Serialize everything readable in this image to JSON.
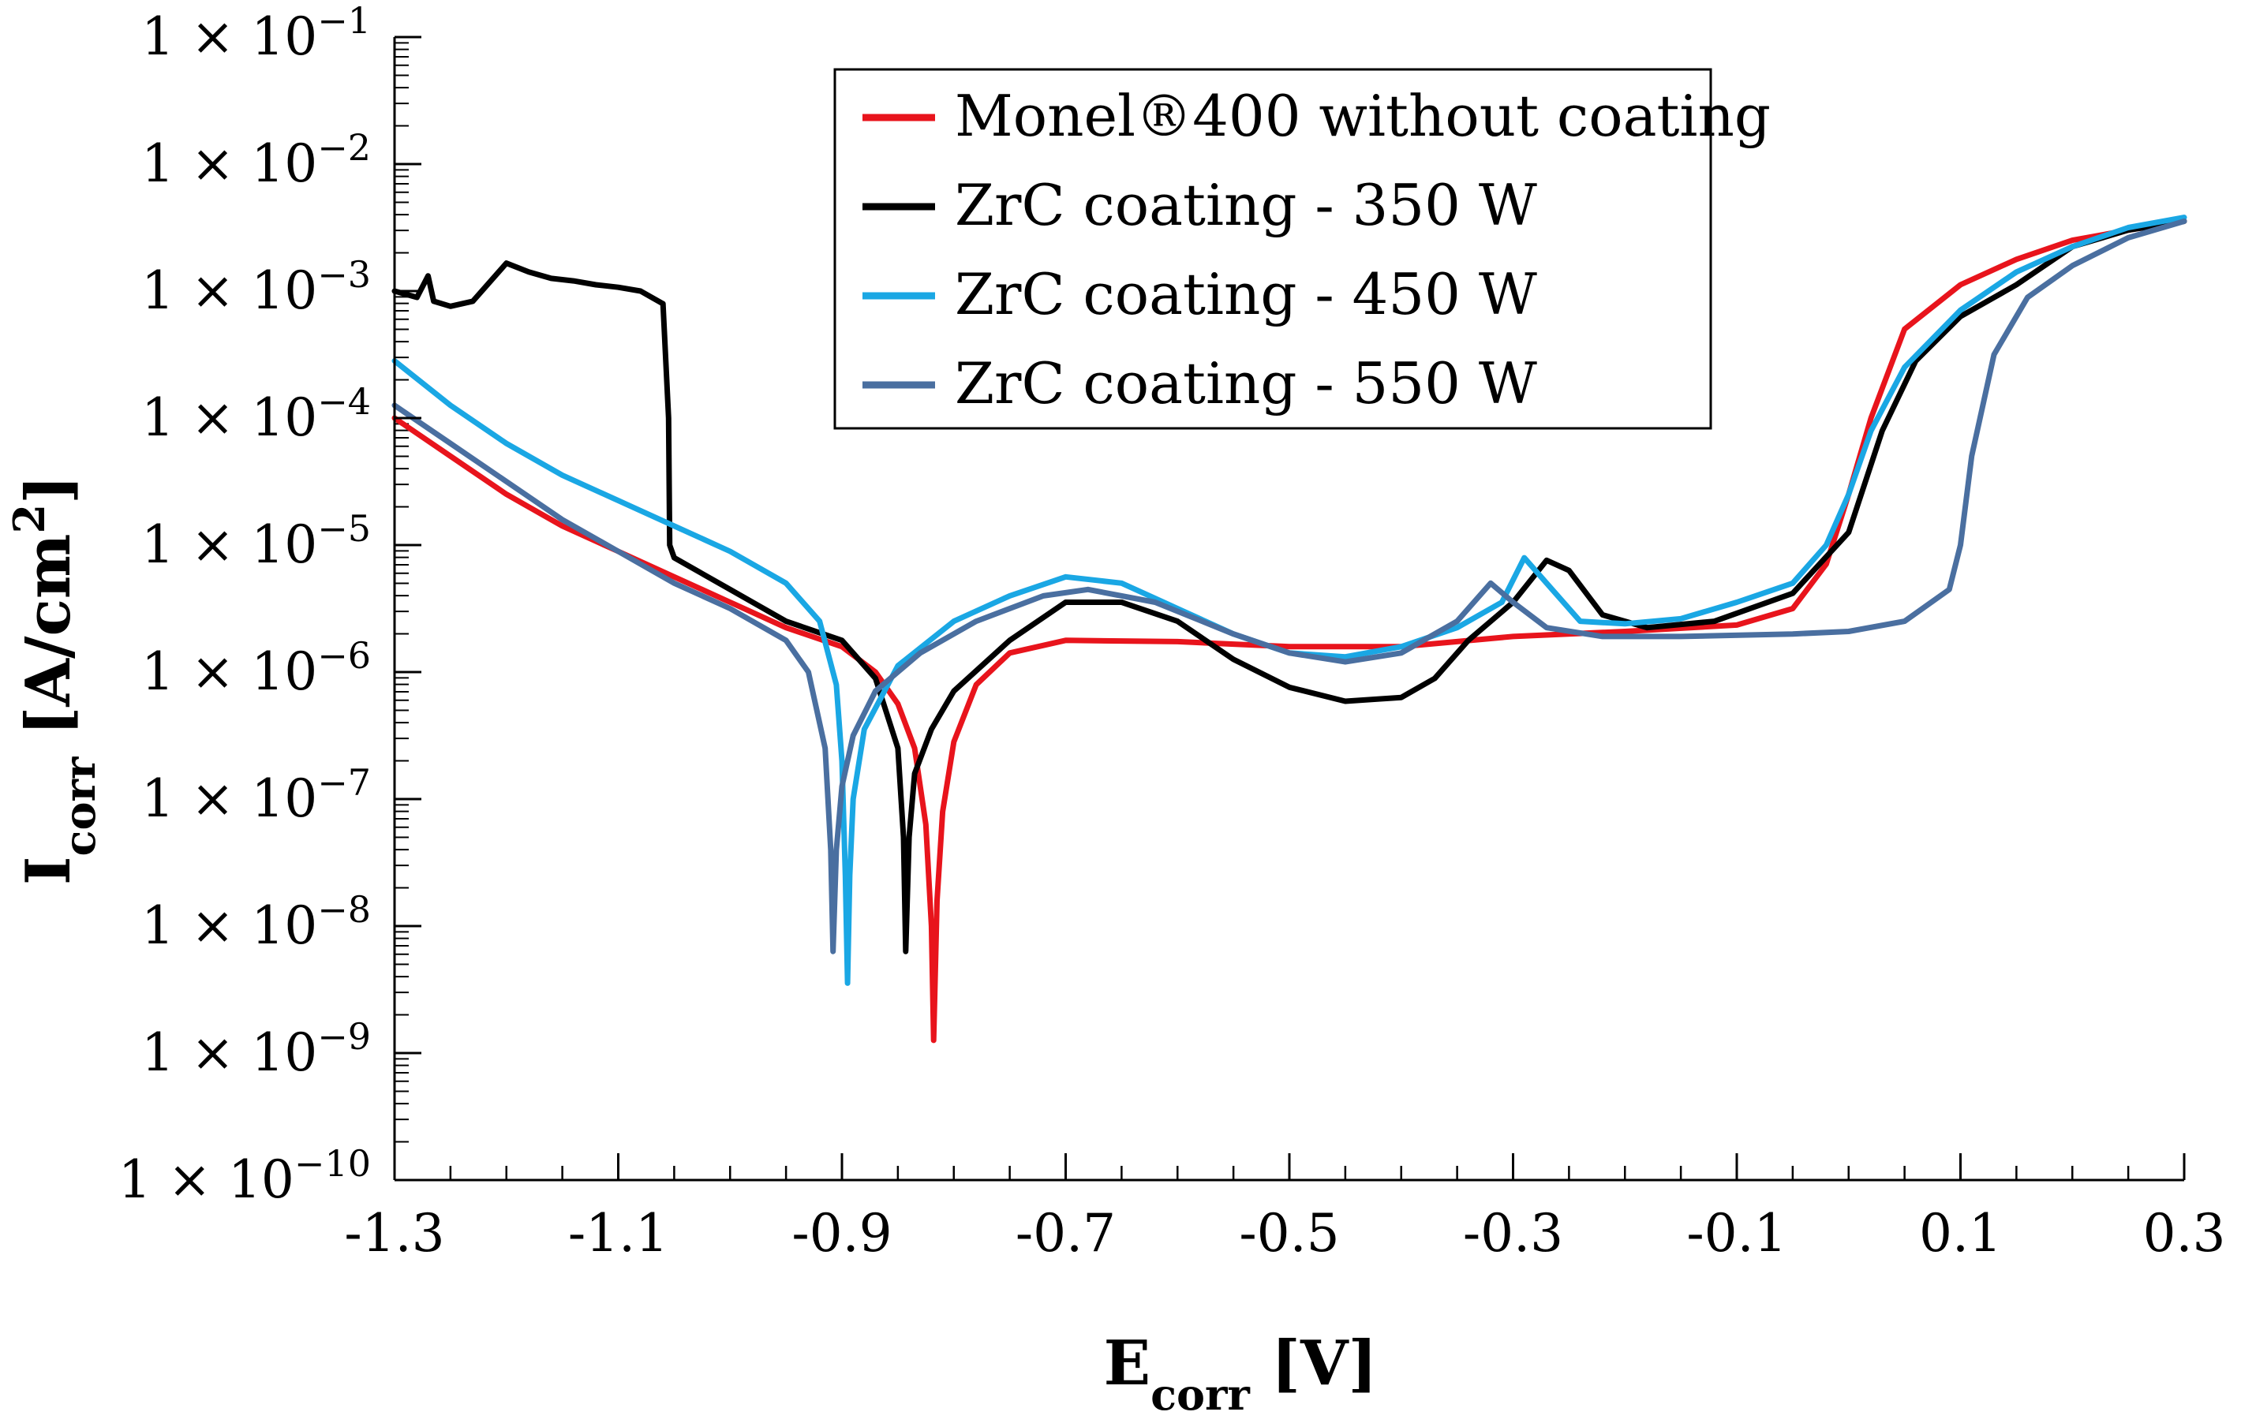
{
  "chart_data": {
    "type": "line",
    "xlabel": {
      "main": "E",
      "sub": "corr",
      "unit": " [V]"
    },
    "ylabel": {
      "main": "I",
      "sub": "corr",
      "unit": " [A/cm",
      "sup": "2",
      "close": "]"
    },
    "xlim": [
      -1.3,
      0.3
    ],
    "ylim_log10": [
      -10,
      -1
    ],
    "x_ticks": [
      -1.3,
      -1.1,
      -0.9,
      -0.7,
      -0.5,
      -0.3,
      -0.1,
      0.1,
      0.3
    ],
    "x_tick_labels": [
      "-1.3",
      "-1.1",
      "-0.9",
      "-0.7",
      "-0.5",
      "-0.3",
      "-0.1",
      "0.1",
      "0.3"
    ],
    "y_ticks": [
      {
        "exp": -1,
        "mant": "1 × 10",
        "pow": "−1"
      },
      {
        "exp": -2,
        "mant": "1 × 10",
        "pow": "−2"
      },
      {
        "exp": -3,
        "mant": "1 × 10",
        "pow": "−3"
      },
      {
        "exp": -4,
        "mant": "1 × 10",
        "pow": "−4"
      },
      {
        "exp": -5,
        "mant": "1 × 10",
        "pow": "−5"
      },
      {
        "exp": -6,
        "mant": "1 × 10",
        "pow": "−6"
      },
      {
        "exp": -7,
        "mant": "1 × 10",
        "pow": "−7"
      },
      {
        "exp": -8,
        "mant": "1 × 10",
        "pow": "−8"
      },
      {
        "exp": -9,
        "mant": "1 × 10",
        "pow": "−9"
      },
      {
        "exp": -10,
        "mant": "1 × 10",
        "pow": "−10"
      }
    ],
    "legend_position": "top-center",
    "series": [
      {
        "name": "Monel®400 without coating",
        "color": "#e8141c",
        "points": [
          [
            -1.3,
            -4.0
          ],
          [
            -1.25,
            -4.3
          ],
          [
            -1.2,
            -4.6
          ],
          [
            -1.15,
            -4.85
          ],
          [
            -1.1,
            -5.05
          ],
          [
            -1.05,
            -5.25
          ],
          [
            -1.0,
            -5.45
          ],
          [
            -0.95,
            -5.65
          ],
          [
            -0.9,
            -5.8
          ],
          [
            -0.87,
            -6.0
          ],
          [
            -0.85,
            -6.25
          ],
          [
            -0.835,
            -6.6
          ],
          [
            -0.825,
            -7.2
          ],
          [
            -0.82,
            -8.0
          ],
          [
            -0.818,
            -8.9
          ],
          [
            -0.815,
            -7.8
          ],
          [
            -0.81,
            -7.1
          ],
          [
            -0.8,
            -6.55
          ],
          [
            -0.78,
            -6.1
          ],
          [
            -0.75,
            -5.85
          ],
          [
            -0.7,
            -5.75
          ],
          [
            -0.6,
            -5.76
          ],
          [
            -0.5,
            -5.8
          ],
          [
            -0.4,
            -5.8
          ],
          [
            -0.3,
            -5.72
          ],
          [
            -0.2,
            -5.68
          ],
          [
            -0.1,
            -5.63
          ],
          [
            -0.05,
            -5.5
          ],
          [
            -0.02,
            -5.15
          ],
          [
            0.0,
            -4.6
          ],
          [
            0.02,
            -4.0
          ],
          [
            0.05,
            -3.3
          ],
          [
            0.1,
            -2.95
          ],
          [
            0.15,
            -2.75
          ],
          [
            0.2,
            -2.6
          ],
          [
            0.25,
            -2.52
          ],
          [
            0.3,
            -2.45
          ]
        ]
      },
      {
        "name": "ZrC coating - 350 W",
        "color": "#000000",
        "points": [
          [
            -1.3,
            -3.0
          ],
          [
            -1.28,
            -3.05
          ],
          [
            -1.27,
            -2.88
          ],
          [
            -1.265,
            -3.08
          ],
          [
            -1.25,
            -3.12
          ],
          [
            -1.23,
            -3.08
          ],
          [
            -1.22,
            -2.98
          ],
          [
            -1.21,
            -2.88
          ],
          [
            -1.2,
            -2.78
          ],
          [
            -1.18,
            -2.85
          ],
          [
            -1.16,
            -2.9
          ],
          [
            -1.14,
            -2.92
          ],
          [
            -1.12,
            -2.95
          ],
          [
            -1.1,
            -2.97
          ],
          [
            -1.08,
            -3.0
          ],
          [
            -1.06,
            -3.1
          ],
          [
            -1.055,
            -4.0
          ],
          [
            -1.054,
            -5.0
          ],
          [
            -1.05,
            -5.1
          ],
          [
            -1.0,
            -5.35
          ],
          [
            -0.95,
            -5.6
          ],
          [
            -0.9,
            -5.75
          ],
          [
            -0.87,
            -6.05
          ],
          [
            -0.85,
            -6.6
          ],
          [
            -0.845,
            -7.3
          ],
          [
            -0.843,
            -8.2
          ],
          [
            -0.84,
            -7.3
          ],
          [
            -0.835,
            -6.8
          ],
          [
            -0.82,
            -6.45
          ],
          [
            -0.8,
            -6.15
          ],
          [
            -0.75,
            -5.75
          ],
          [
            -0.7,
            -5.45
          ],
          [
            -0.65,
            -5.45
          ],
          [
            -0.6,
            -5.6
          ],
          [
            -0.55,
            -5.9
          ],
          [
            -0.5,
            -6.12
          ],
          [
            -0.45,
            -6.23
          ],
          [
            -0.4,
            -6.2
          ],
          [
            -0.37,
            -6.05
          ],
          [
            -0.34,
            -5.75
          ],
          [
            -0.3,
            -5.45
          ],
          [
            -0.27,
            -5.12
          ],
          [
            -0.25,
            -5.2
          ],
          [
            -0.22,
            -5.55
          ],
          [
            -0.18,
            -5.65
          ],
          [
            -0.12,
            -5.6
          ],
          [
            -0.05,
            -5.38
          ],
          [
            0.0,
            -4.9
          ],
          [
            0.03,
            -4.1
          ],
          [
            0.06,
            -3.55
          ],
          [
            0.1,
            -3.2
          ],
          [
            0.15,
            -2.95
          ],
          [
            0.2,
            -2.65
          ],
          [
            0.25,
            -2.52
          ],
          [
            0.3,
            -2.45
          ]
        ]
      },
      {
        "name": "ZrC coating - 450 W",
        "color": "#1aa7e4",
        "points": [
          [
            -1.3,
            -3.55
          ],
          [
            -1.25,
            -3.9
          ],
          [
            -1.2,
            -4.2
          ],
          [
            -1.15,
            -4.45
          ],
          [
            -1.1,
            -4.65
          ],
          [
            -1.05,
            -4.85
          ],
          [
            -1.0,
            -5.05
          ],
          [
            -0.95,
            -5.3
          ],
          [
            -0.92,
            -5.6
          ],
          [
            -0.905,
            -6.1
          ],
          [
            -0.9,
            -6.7
          ],
          [
            -0.897,
            -7.6
          ],
          [
            -0.895,
            -8.45
          ],
          [
            -0.893,
            -7.6
          ],
          [
            -0.89,
            -7.0
          ],
          [
            -0.88,
            -6.45
          ],
          [
            -0.85,
            -5.95
          ],
          [
            -0.8,
            -5.6
          ],
          [
            -0.75,
            -5.4
          ],
          [
            -0.7,
            -5.25
          ],
          [
            -0.65,
            -5.3
          ],
          [
            -0.6,
            -5.5
          ],
          [
            -0.55,
            -5.7
          ],
          [
            -0.5,
            -5.85
          ],
          [
            -0.45,
            -5.88
          ],
          [
            -0.4,
            -5.8
          ],
          [
            -0.35,
            -5.65
          ],
          [
            -0.31,
            -5.45
          ],
          [
            -0.29,
            -5.1
          ],
          [
            -0.27,
            -5.3
          ],
          [
            -0.24,
            -5.6
          ],
          [
            -0.2,
            -5.62
          ],
          [
            -0.15,
            -5.58
          ],
          [
            -0.1,
            -5.45
          ],
          [
            -0.05,
            -5.3
          ],
          [
            -0.02,
            -5.0
          ],
          [
            0.0,
            -4.6
          ],
          [
            0.02,
            -4.1
          ],
          [
            0.05,
            -3.6
          ],
          [
            0.1,
            -3.15
          ],
          [
            0.15,
            -2.85
          ],
          [
            0.2,
            -2.65
          ],
          [
            0.25,
            -2.5
          ],
          [
            0.3,
            -2.42
          ]
        ]
      },
      {
        "name": "ZrC coating - 550 W",
        "color": "#4a6fa0",
        "points": [
          [
            -1.3,
            -3.9
          ],
          [
            -1.25,
            -4.2
          ],
          [
            -1.2,
            -4.5
          ],
          [
            -1.15,
            -4.8
          ],
          [
            -1.1,
            -5.05
          ],
          [
            -1.05,
            -5.3
          ],
          [
            -1.0,
            -5.5
          ],
          [
            -0.95,
            -5.75
          ],
          [
            -0.93,
            -6.0
          ],
          [
            -0.915,
            -6.6
          ],
          [
            -0.91,
            -7.4
          ],
          [
            -0.908,
            -8.2
          ],
          [
            -0.905,
            -7.4
          ],
          [
            -0.9,
            -6.9
          ],
          [
            -0.89,
            -6.5
          ],
          [
            -0.87,
            -6.15
          ],
          [
            -0.83,
            -5.85
          ],
          [
            -0.78,
            -5.6
          ],
          [
            -0.72,
            -5.4
          ],
          [
            -0.68,
            -5.35
          ],
          [
            -0.62,
            -5.45
          ],
          [
            -0.55,
            -5.7
          ],
          [
            -0.5,
            -5.85
          ],
          [
            -0.45,
            -5.92
          ],
          [
            -0.4,
            -5.85
          ],
          [
            -0.35,
            -5.6
          ],
          [
            -0.32,
            -5.3
          ],
          [
            -0.3,
            -5.45
          ],
          [
            -0.27,
            -5.65
          ],
          [
            -0.22,
            -5.72
          ],
          [
            -0.15,
            -5.72
          ],
          [
            -0.05,
            -5.7
          ],
          [
            0.0,
            -5.68
          ],
          [
            0.05,
            -5.6
          ],
          [
            0.09,
            -5.35
          ],
          [
            0.1,
            -5.0
          ],
          [
            0.11,
            -4.3
          ],
          [
            0.13,
            -3.5
          ],
          [
            0.16,
            -3.05
          ],
          [
            0.2,
            -2.8
          ],
          [
            0.25,
            -2.58
          ],
          [
            0.3,
            -2.45
          ]
        ]
      }
    ]
  }
}
